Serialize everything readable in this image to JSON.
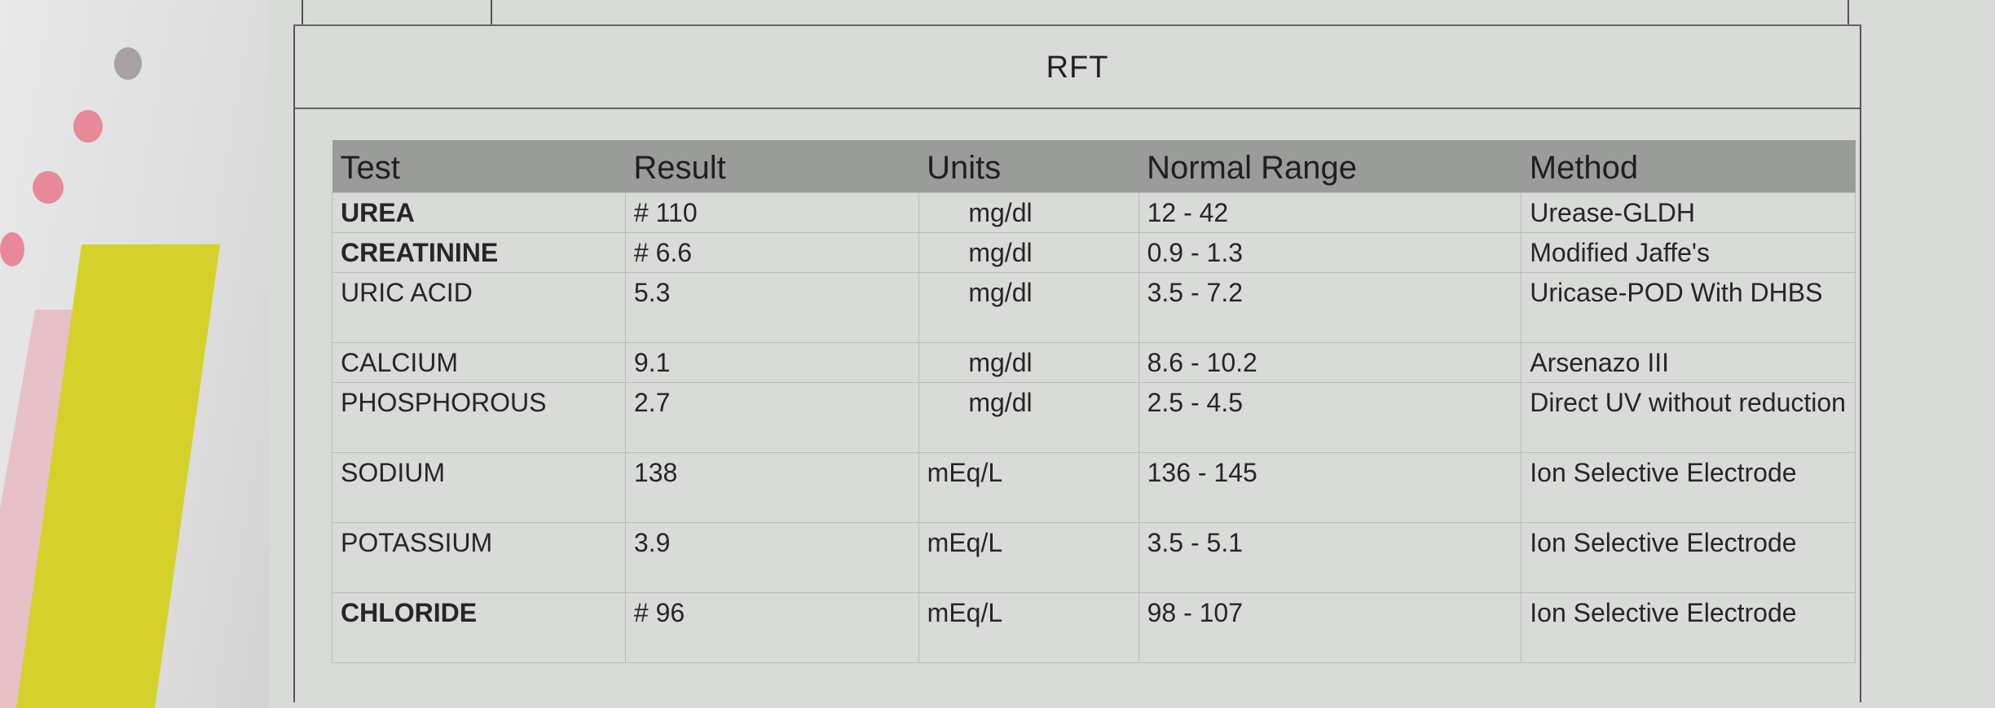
{
  "report": {
    "section_title": "RFT",
    "columns": [
      "Test",
      "Result",
      "Units",
      "Normal Range",
      "Method"
    ],
    "rows": [
      {
        "test": "UREA",
        "result": "# 110",
        "units": "mg/dl",
        "range": "12 - 42",
        "method": "Urease-GLDH"
      },
      {
        "test": "CREATININE",
        "result": "# 6.6",
        "units": "mg/dl",
        "range": "0.9 - 1.3",
        "method": "Modified Jaffe's"
      },
      {
        "test": "URIC ACID",
        "result": "5.3",
        "units": "mg/dl",
        "range": "3.5 - 7.2",
        "method": "Uricase-POD With DHBS"
      },
      {
        "test": "CALCIUM",
        "result": "9.1",
        "units": "mg/dl",
        "range": "8.6 - 10.2",
        "method": "Arsenazo III"
      },
      {
        "test": "PHOSPHOROUS",
        "result": "2.7",
        "units": "mg/dl",
        "range": "2.5 - 4.5",
        "method": "Direct UV without reduction"
      },
      {
        "test": "SODIUM",
        "result": "138",
        "units": "mEq/L",
        "range": "136 - 145",
        "method": "Ion Selective Electrode"
      },
      {
        "test": "POTASSIUM",
        "result": "3.9",
        "units": "mEq/L",
        "range": "3.5 - 5.1",
        "method": "Ion Selective Electrode"
      },
      {
        "test": "CHLORIDE",
        "result": "# 96",
        "units": "mEq/L",
        "range": "98 - 107",
        "method": "Ion Selective Electrode"
      }
    ]
  }
}
